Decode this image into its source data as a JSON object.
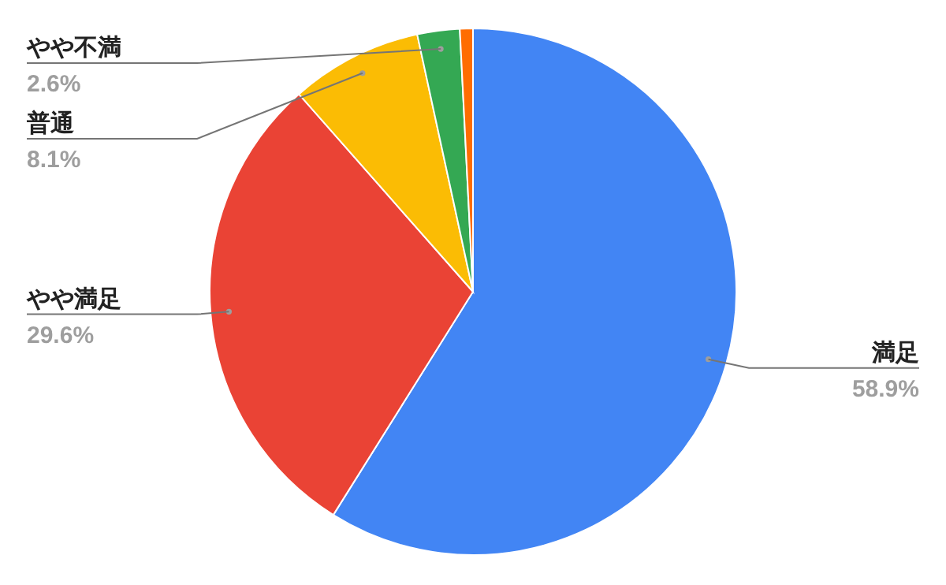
{
  "chart_data": {
    "type": "pie",
    "categories": [
      "満足",
      "やや満足",
      "普通",
      "やや不満",
      null
    ],
    "values": [
      58.9,
      29.6,
      8.1,
      2.6,
      0.8
    ],
    "value_labels": [
      "58.9%",
      "29.6%",
      "8.1%",
      "2.6%",
      null
    ],
    "colors": [
      "#4285f4",
      "#ea4335",
      "#fbbc04",
      "#34a853",
      "#ff6d01"
    ]
  }
}
